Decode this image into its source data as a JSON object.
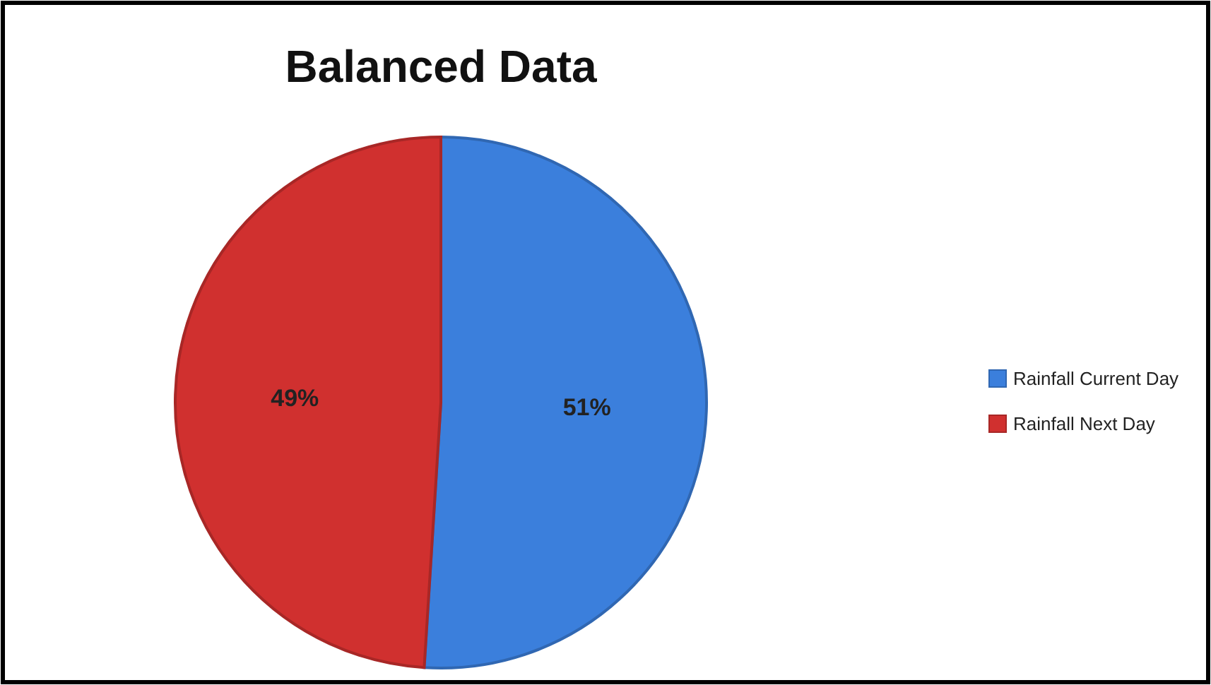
{
  "chart_data": {
    "type": "pie",
    "title": "Balanced Data",
    "categories": [
      "Rainfall Current Day",
      "Rainfall Next Day"
    ],
    "values": [
      51,
      49
    ],
    "value_labels": [
      "51%",
      "49%"
    ],
    "colors": [
      "#3b7fdc",
      "#d0302f"
    ],
    "data_labels": true,
    "legend": "right"
  }
}
